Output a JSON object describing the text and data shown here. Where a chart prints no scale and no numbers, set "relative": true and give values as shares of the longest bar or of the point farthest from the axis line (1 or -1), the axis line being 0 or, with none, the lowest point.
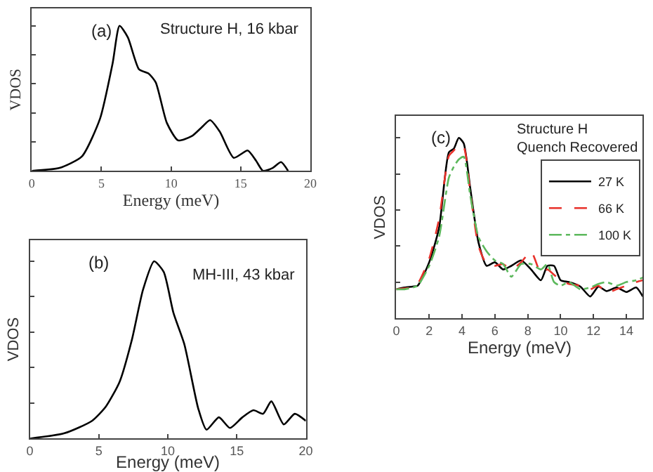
{
  "chart_data": [
    {
      "type": "line",
      "relative": true,
      "xlabel": "Energy (meV)",
      "ylabel": "VDOS",
      "xlim": [
        0,
        20
      ],
      "xticks": [
        0,
        5,
        10,
        15,
        20
      ],
      "tick_labels": "x",
      "legend": false,
      "annotations": [
        "(a)",
        "Structure H, 16 kbar"
      ],
      "x": [
        0,
        2,
        3.6,
        4.9,
        5.8,
        6.3,
        6.9,
        7.7,
        8.4,
        8.9,
        9.7,
        10.5,
        11.5,
        12.2,
        12.8,
        13.5,
        14.5,
        15.5,
        16.1,
        16.6,
        17.3,
        17.9,
        18.4
      ],
      "series": [
        {
          "color": "#000000",
          "line_style": "solid",
          "values": [
            0,
            0.02,
            0.1,
            0.36,
            0.74,
            1.0,
            0.92,
            0.7,
            0.67,
            0.61,
            0.33,
            0.21,
            0.24,
            0.3,
            0.35,
            0.27,
            0.09,
            0.14,
            0.07,
            0,
            0.02,
            0.06,
            0
          ]
        }
      ]
    },
    {
      "type": "line",
      "relative": true,
      "xlabel": "Energy (meV)",
      "ylabel": "VDOS",
      "xlim": [
        0,
        20
      ],
      "xticks": [
        0,
        5,
        10,
        15,
        20
      ],
      "tick_labels": "x",
      "legend": false,
      "annotations": [
        "(b)",
        "MH-III, 43 kbar"
      ],
      "x": [
        0,
        2.5,
        4.5,
        5.5,
        6.5,
        7.4,
        8.2,
        9.0,
        9.7,
        10.4,
        11.2,
        12.2,
        12.8,
        13.7,
        14.5,
        15.4,
        16.2,
        16.9,
        17.5,
        18.4,
        19.2,
        20
      ],
      "series": [
        {
          "color": "#000000",
          "line_style": "solid",
          "values": [
            0,
            0.03,
            0.1,
            0.18,
            0.32,
            0.56,
            0.84,
            1.0,
            0.94,
            0.71,
            0.53,
            0.17,
            0.05,
            0.12,
            0.06,
            0.12,
            0.16,
            0.14,
            0.21,
            0.08,
            0.14,
            0.1
          ]
        }
      ]
    },
    {
      "type": "line",
      "relative": true,
      "xlabel": "Energy (meV)",
      "ylabel": "VDOS",
      "xlim": [
        0,
        15
      ],
      "xticks": [
        0,
        2,
        4,
        6,
        8,
        10,
        12,
        14
      ],
      "tick_labels": "x",
      "legend": "top right",
      "annotations": [
        "(c)",
        "Structure H\nQuench Recovered"
      ],
      "x": [
        0,
        0.5,
        1.0,
        1.3,
        2.0,
        2.6,
        3.2,
        3.5,
        3.8,
        4.1,
        4.5,
        5.0,
        5.5,
        6.0,
        6.5,
        7.0,
        7.6,
        8.2,
        8.8,
        9.2,
        9.6,
        10.0,
        10.5,
        11.2,
        11.8,
        12.3,
        12.8,
        13.4,
        14.0,
        14.6,
        15
      ],
      "series": [
        {
          "name": "27 K",
          "color": "#000000",
          "line_style": "solid",
          "values": [
            0.16,
            0.17,
            0.175,
            0.18,
            0.31,
            0.5,
            0.92,
            0.94,
            1.0,
            0.97,
            0.72,
            0.42,
            0.29,
            0.31,
            0.27,
            0.29,
            0.32,
            0.27,
            0.21,
            0.29,
            0.29,
            0.21,
            0.2,
            0.175,
            0.12,
            0.175,
            0.15,
            0.17,
            0.145,
            0.17,
            0.12
          ]
        },
        {
          "name": "66 K",
          "color": "#e8312a",
          "line_style": "dashed",
          "values": [
            0.16,
            0.165,
            0.17,
            0.19,
            0.33,
            0.55,
            0.9,
            0.93,
            0.96,
            0.95,
            0.7,
            0.4,
            0.3,
            0.29,
            0.3,
            0.27,
            0.31,
            0.37,
            0.25,
            0.27,
            0.24,
            0.21,
            0.19,
            0.18,
            0.16,
            0.18,
            0.14,
            0.16,
            0.18,
            0.2,
            0.21
          ]
        },
        {
          "name": "100 K",
          "color": "#5cb85c",
          "line_style": "dashdot",
          "values": [
            0.16,
            0.16,
            0.17,
            0.18,
            0.29,
            0.45,
            0.78,
            0.84,
            0.88,
            0.895,
            0.68,
            0.45,
            0.37,
            0.32,
            0.3,
            0.23,
            0.3,
            0.3,
            0.27,
            0.3,
            0.2,
            0.18,
            0.2,
            0.16,
            0.17,
            0.19,
            0.2,
            0.18,
            0.2,
            0.21,
            0.225
          ]
        }
      ]
    }
  ]
}
